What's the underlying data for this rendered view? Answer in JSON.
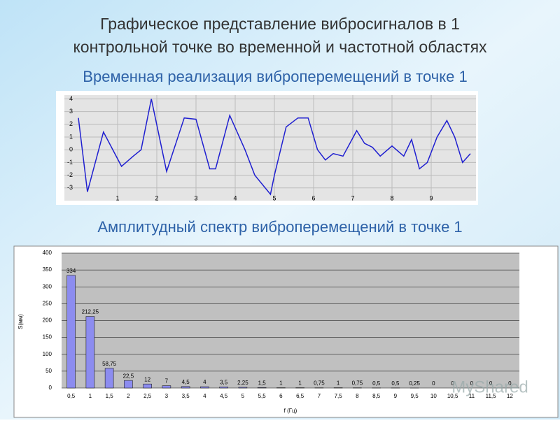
{
  "slide_title": [
    "Графическое представление вибросигналов в 1",
    "контрольной точке во временной и частотной областях"
  ],
  "watermark": "MyShared",
  "chart_data": [
    {
      "type": "line",
      "title": "Временная реализация виброперемещений в точке 1",
      "x": [
        0,
        0.23,
        0.64,
        1.1,
        1.4,
        1.6,
        1.86,
        2.25,
        2.7,
        3.0,
        3.35,
        3.5,
        3.86,
        4.25,
        4.5,
        4.9,
        5.0,
        5.3,
        5.6,
        5.86,
        6.1,
        6.3,
        6.5,
        6.75,
        7.1,
        7.3,
        7.5,
        7.7,
        8.0,
        8.3,
        8.5,
        8.7,
        8.9,
        9.15,
        9.4,
        9.6,
        9.8,
        10
      ],
      "values": [
        2.5,
        -3.3,
        1.4,
        -1.3,
        -0.5,
        0,
        4,
        -1.7,
        2.5,
        2.4,
        -1.5,
        -1.5,
        2.7,
        0,
        -2,
        -3.5,
        -2,
        1.8,
        2.5,
        2.5,
        0,
        -0.8,
        -0.3,
        -0.5,
        1.5,
        0.5,
        0.2,
        -0.5,
        0.3,
        -0.5,
        0.8,
        -1.5,
        -1,
        1,
        2.3,
        1,
        -1,
        -0.3
      ],
      "color": "#1f1fd0",
      "xlim": [
        0,
        10
      ],
      "xticks": [
        1,
        2,
        3,
        4,
        5,
        6,
        7,
        8,
        9
      ],
      "ylim": [
        -4,
        4.3
      ],
      "yticks": [
        -3,
        -2,
        -1,
        0,
        1,
        2,
        3,
        4
      ],
      "grid": true
    },
    {
      "type": "bar",
      "title": "Амплитудный спектр виброперемещений в точке 1",
      "xlabel": "f (Гц)",
      "ylabel": "S(мм)",
      "categories": [
        "0,5",
        "1",
        "1,5",
        "2",
        "2,5",
        "3",
        "3,5",
        "4",
        "4,5",
        "5",
        "5,5",
        "6",
        "6,5",
        "7",
        "7,5",
        "8",
        "8,5",
        "9",
        "9,5",
        "10",
        "10,5",
        "11",
        "11,5",
        "12"
      ],
      "values": [
        334,
        212.25,
        58.75,
        22.5,
        12,
        7,
        4.5,
        4,
        3.5,
        2.25,
        1.5,
        1,
        1,
        0.75,
        1,
        0.75,
        0.5,
        0.5,
        0.25,
        0,
        0,
        0,
        0,
        0
      ],
      "value_labels": [
        "334",
        "212,25",
        "58,75",
        "22,5",
        "12",
        "7",
        "4,5",
        "4",
        "3,5",
        "2,25",
        "1,5",
        "1",
        "1",
        "0,75",
        "1",
        "0,75",
        "0,5",
        "0,5",
        "0,25",
        "0",
        "0",
        "0",
        "0",
        "0"
      ],
      "color": "#8c8cf0",
      "ylim": [
        0,
        400
      ],
      "yticks": [
        0,
        50,
        100,
        150,
        200,
        250,
        300,
        350,
        400
      ],
      "grid": true
    }
  ]
}
